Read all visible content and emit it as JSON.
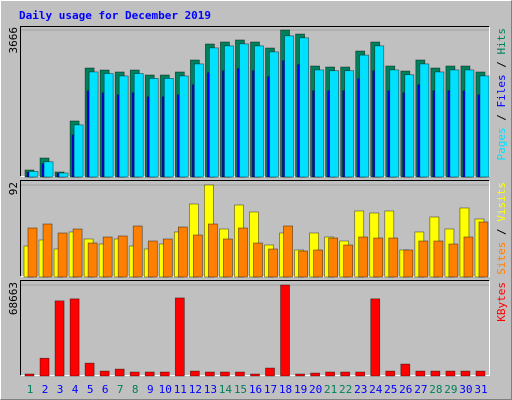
{
  "chart_data": [
    {
      "type": "bar",
      "title": "Daily usage for December 2019",
      "legend_separator": " / ",
      "ylim": [
        0,
        3666
      ],
      "yticks": [
        3666
      ],
      "grid": true,
      "series": [
        {
          "name": "Hits",
          "color": "#00805C",
          "values": [
            175,
            474,
            125,
            1397,
            2718,
            2668,
            2619,
            2668,
            2544,
            2544,
            2619,
            2918,
            3317,
            3367,
            3417,
            3367,
            3217,
            3666,
            3566,
            2768,
            2743,
            2743,
            3142,
            3367,
            2768,
            2643,
            2918,
            2718,
            2768,
            2768,
            2619
          ]
        },
        {
          "name": "Files",
          "color": "#0000FF",
          "values": [
            120,
            330,
            90,
            1050,
            2150,
            2100,
            2050,
            2100,
            2000,
            2000,
            2050,
            2300,
            2600,
            2650,
            2700,
            2650,
            2500,
            2900,
            2800,
            2150,
            2150,
            2150,
            2450,
            2650,
            2150,
            2100,
            2300,
            2150,
            2150,
            2150,
            2050
          ]
        },
        {
          "name": "Pages",
          "color": "#00E0FF",
          "values": [
            140,
            380,
            100,
            1300,
            2620,
            2580,
            2520,
            2580,
            2460,
            2460,
            2520,
            2820,
            3220,
            3270,
            3320,
            3270,
            3120,
            3520,
            3470,
            2670,
            2650,
            2650,
            3040,
            3270,
            2670,
            2550,
            2820,
            2620,
            2670,
            2670,
            2520
          ]
        }
      ]
    },
    {
      "type": "bar",
      "legend_separator": " / ",
      "ylim": [
        0,
        92
      ],
      "yticks": [
        92
      ],
      "grid": true,
      "series": [
        {
          "name": "Visits",
          "color": "#FFFF00",
          "values": [
            31,
            37,
            28,
            45,
            38,
            33,
            38,
            31,
            28,
            33,
            45,
            73,
            92,
            48,
            72,
            65,
            32,
            44,
            27,
            44,
            40,
            36,
            66,
            64,
            66,
            27,
            45,
            60,
            48,
            69,
            58
          ]
        },
        {
          "name": "Sites",
          "color": "#FF8000",
          "values": [
            49,
            53,
            44,
            48,
            34,
            40,
            41,
            51,
            36,
            38,
            50,
            42,
            53,
            38,
            49,
            34,
            28,
            51,
            26,
            27,
            39,
            32,
            40,
            39,
            39,
            27,
            36,
            36,
            33,
            40,
            55
          ]
        }
      ]
    },
    {
      "type": "bar",
      "ylim": [
        0,
        68663
      ],
      "yticks": [
        68663
      ],
      "grid": true,
      "series": [
        {
          "name": "KBytes",
          "color": "#FF0000",
          "values": [
            1500,
            13400,
            56700,
            58200,
            9700,
            3700,
            5200,
            3000,
            3000,
            3000,
            58900,
            3700,
            3000,
            3000,
            3000,
            1500,
            6000,
            68663,
            1500,
            2200,
            3000,
            3000,
            3000,
            58200,
            3700,
            9000,
            3700,
            3700,
            3700,
            3700,
            3700
          ]
        }
      ],
      "categories": [
        "1",
        "2",
        "3",
        "4",
        "5",
        "6",
        "7",
        "8",
        "9",
        "10",
        "11",
        "12",
        "13",
        "14",
        "15",
        "16",
        "17",
        "18",
        "19",
        "20",
        "21",
        "22",
        "23",
        "24",
        "25",
        "26",
        "27",
        "28",
        "29",
        "30",
        "31"
      ],
      "category_colors": [
        "#00805C",
        "#0000FF",
        "#0000FF",
        "#0000FF",
        "#0000FF",
        "#0000FF",
        "#00805C",
        "#00805C",
        "#0000FF",
        "#0000FF",
        "#0000FF",
        "#0000FF",
        "#0000FF",
        "#00805C",
        "#00805C",
        "#0000FF",
        "#0000FF",
        "#0000FF",
        "#0000FF",
        "#0000FF",
        "#00805C",
        "#00805C",
        "#0000FF",
        "#0000FF",
        "#0000FF",
        "#0000FF",
        "#0000FF",
        "#00805C",
        "#00805C",
        "#0000FF",
        "#0000FF"
      ]
    }
  ]
}
